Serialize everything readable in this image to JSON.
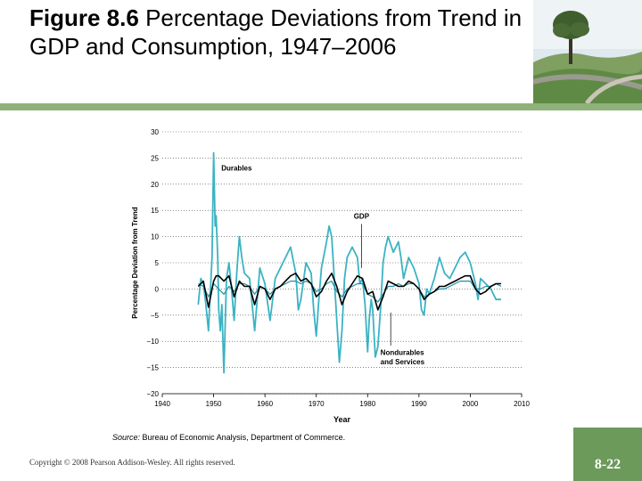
{
  "slide": {
    "figure_label": "Figure 8.6",
    "title": "Percentage Deviations from Trend in GDP and Consumption, 1947–2006",
    "source_label": "Source:",
    "source_text": "Bureau of Economic Analysis, Department of Commerce.",
    "copyright": "Copyright © 2008 Pearson Addison-Wesley. All rights reserved.",
    "slide_number": "8-22"
  },
  "colors": {
    "accent_green": "#6b9a5b",
    "rule_green": "#8fb27a",
    "durables": "#3bb3c3",
    "gdp": "#000000",
    "nondurables": "#1f8fa3"
  },
  "chart_data": {
    "type": "line",
    "title": "",
    "xlabel": "Year",
    "ylabel": "Percentage Deviation from Trend",
    "xlim": [
      1940,
      2010
    ],
    "ylim": [
      -20,
      30
    ],
    "x_ticks": [
      "1940",
      "1950",
      "1960",
      "1970",
      "1980",
      "1990",
      "2000",
      "2010"
    ],
    "y_ticks": [
      "30",
      "25",
      "20",
      "15",
      "10",
      "5",
      "0",
      "−5",
      "−10",
      "−15",
      "−20"
    ],
    "grid": "horizontal-dotted",
    "annotations": {
      "durables": "Durables",
      "gdp": "GDP",
      "nondurables_line1": "Nondurables",
      "nondurables_line2": "and Services"
    },
    "series": [
      {
        "name": "Durables",
        "x": [
          1947,
          1947.5,
          1948,
          1948.5,
          1949,
          1949.3,
          1949.7,
          1950,
          1950.3,
          1950.5,
          1950.8,
          1951,
          1951.3,
          1951.6,
          1952,
          1952.5,
          1953,
          1953.5,
          1954,
          1954.5,
          1955,
          1955.5,
          1956,
          1957,
          1957.5,
          1958,
          1958.5,
          1959,
          1960,
          1961,
          1962,
          1963,
          1964,
          1965,
          1966,
          1966.5,
          1967,
          1968,
          1969,
          1969.5,
          1970,
          1970.5,
          1971,
          1972,
          1972.5,
          1973,
          1973.5,
          1974,
          1974.5,
          1975,
          1975.5,
          1976,
          1977,
          1978,
          1978.5,
          1979,
          1979.5,
          1980,
          1980.3,
          1980.7,
          1981,
          1981.5,
          1982,
          1982.5,
          1983,
          1983.5,
          1984,
          1985,
          1986,
          1986.5,
          1987,
          1988,
          1989,
          1990,
          1990.5,
          1991,
          1991.5,
          1992,
          1993,
          1994,
          1995,
          1996,
          1997,
          1998,
          1999,
          2000,
          2001,
          2001.5,
          2002,
          2003,
          2004,
          2005,
          2006
        ],
        "values": [
          -3,
          2,
          1,
          -3,
          -8,
          -2,
          6,
          26,
          12,
          14,
          6,
          -4,
          -8,
          -3,
          -16,
          2,
          5,
          0,
          -6,
          3,
          10,
          6,
          3,
          2,
          -3,
          -8,
          -2,
          4,
          1,
          -6,
          2,
          4,
          6,
          8,
          3,
          -4,
          -2,
          5,
          3,
          -4,
          -9,
          -2,
          4,
          9,
          12,
          10,
          2,
          -6,
          -14,
          -8,
          2,
          6,
          8,
          6,
          1,
          2,
          -3,
          -12,
          -6,
          -2,
          -4,
          -13,
          -11,
          -4,
          5,
          8,
          10,
          7,
          9,
          6,
          2,
          6,
          4,
          1,
          -4,
          -5,
          0,
          -1,
          2,
          6,
          3,
          2,
          4,
          6,
          7,
          5,
          1,
          -2,
          2,
          1,
          0,
          -2,
          -2
        ]
      },
      {
        "name": "GDP",
        "x": [
          1947,
          1948,
          1949,
          1950,
          1950.5,
          1951,
          1952,
          1953,
          1954,
          1955,
          1956,
          1957,
          1958,
          1959,
          1960,
          1961,
          1962,
          1963,
          1964,
          1965,
          1966,
          1967,
          1968,
          1969,
          1970,
          1971,
          1972,
          1973,
          1974,
          1975,
          1976,
          1977,
          1978,
          1979,
          1980,
          1981,
          1982,
          1983,
          1984,
          1985,
          1986,
          1987,
          1988,
          1989,
          1990,
          1991,
          1992,
          1993,
          1994,
          1995,
          1996,
          1997,
          1998,
          1999,
          2000,
          2001,
          2002,
          2003,
          2004,
          2005,
          2006
        ],
        "values": [
          0.5,
          1.5,
          -3.5,
          1.5,
          2.5,
          2.5,
          1.5,
          2.5,
          -1.5,
          1.5,
          0.5,
          0.5,
          -3,
          0.5,
          0,
          -2,
          0,
          0.5,
          1.5,
          2.5,
          3,
          1.5,
          2,
          1,
          -1.5,
          -0.5,
          1.5,
          3,
          0.5,
          -3,
          -0.5,
          1,
          2.5,
          2,
          -1,
          -0.5,
          -4,
          -1.5,
          1.5,
          1,
          0.5,
          0.5,
          1.5,
          1,
          0,
          -2,
          -1,
          -0.5,
          0.5,
          0.5,
          1,
          1.5,
          2,
          2.5,
          2.5,
          0,
          -1,
          -0.5,
          0.5,
          1,
          1
        ]
      },
      {
        "name": "Nondurables and Services",
        "x": [
          1947,
          1948,
          1949,
          1950,
          1951,
          1952,
          1953,
          1954,
          1955,
          1956,
          1957,
          1958,
          1959,
          1960,
          1961,
          1962,
          1963,
          1964,
          1965,
          1966,
          1967,
          1968,
          1969,
          1970,
          1971,
          1972,
          1973,
          1974,
          1975,
          1976,
          1977,
          1978,
          1979,
          1980,
          1981,
          1982,
          1983,
          1984,
          1985,
          1986,
          1987,
          1988,
          1989,
          1990,
          1991,
          1992,
          1993,
          1994,
          1995,
          1996,
          1997,
          1998,
          1999,
          2000,
          2001,
          2002,
          2003,
          2004,
          2005,
          2006
        ],
        "values": [
          1,
          0.5,
          -1.5,
          1,
          0,
          -1,
          0.5,
          -0.5,
          1,
          1,
          0.5,
          -1,
          0.5,
          0,
          -1,
          0,
          0.5,
          1,
          1.5,
          1.5,
          1,
          1.5,
          1,
          -0.5,
          0,
          1,
          1.5,
          -0.5,
          -1.5,
          0,
          0.5,
          1,
          1,
          -1,
          -1.5,
          -2.5,
          -1,
          0.5,
          0.5,
          1,
          0.5,
          1,
          1,
          0,
          -1.5,
          -1,
          -0.5,
          0,
          0,
          0.5,
          1,
          1.5,
          1.5,
          1.5,
          0,
          0,
          0.5,
          0.5,
          1,
          0.5
        ]
      }
    ]
  }
}
